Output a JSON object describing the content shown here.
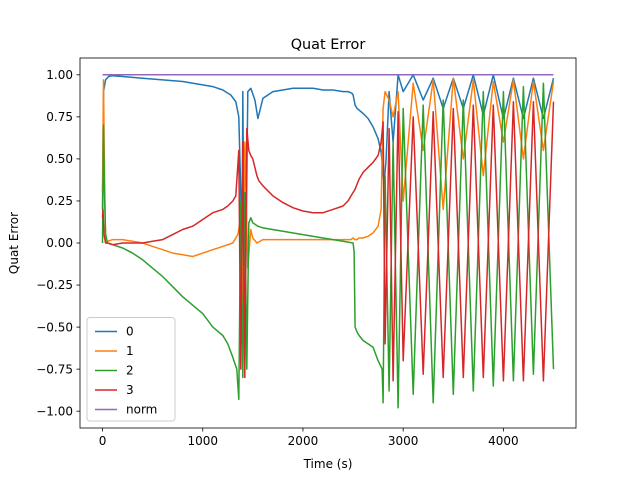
{
  "chart_data": {
    "type": "line",
    "title": "Quat Error",
    "xlabel": "Time (s)",
    "ylabel": "Quat Error",
    "xlim": [
      -225,
      4725
    ],
    "ylim": [
      -1.1,
      1.1
    ],
    "xticks": [
      0,
      1000,
      2000,
      3000,
      4000
    ],
    "xtick_labels": [
      "0",
      "1000",
      "2000",
      "3000",
      "4000"
    ],
    "yticks": [
      -1.0,
      -0.75,
      -0.5,
      -0.25,
      0.0,
      0.25,
      0.5,
      0.75,
      1.0
    ],
    "ytick_labels": [
      "−1.00",
      "−0.75",
      "−0.50",
      "−0.25",
      "0.00",
      "0.25",
      "0.50",
      "0.75",
      "1.00"
    ],
    "grid": false,
    "legend_position": "lower-left",
    "series": [
      {
        "name": "0",
        "color": "#1f77b4",
        "x": [
          0,
          10,
          30,
          60,
          100,
          200,
          400,
          600,
          800,
          1000,
          1100,
          1200,
          1280,
          1330,
          1360,
          1380,
          1390,
          1400,
          1420,
          1450,
          1480,
          1520,
          1550,
          1600,
          1700,
          1800,
          1900,
          2000,
          2100,
          2200,
          2300,
          2400,
          2450,
          2490,
          2500,
          2520,
          2540,
          2560,
          2600,
          2650,
          2700,
          2750,
          2780,
          2800,
          2810,
          2830,
          2860,
          2900,
          2950,
          3000,
          3100,
          3200,
          3300,
          3400,
          3500,
          3600,
          3700,
          3800,
          3900,
          4000,
          4100,
          4200,
          4300,
          4400,
          4500
        ],
        "y": [
          0.2,
          0.9,
          0.97,
          0.99,
          0.995,
          0.99,
          0.98,
          0.97,
          0.96,
          0.94,
          0.93,
          0.91,
          0.88,
          0.84,
          0.75,
          0.3,
          -0.6,
          0.9,
          -0.7,
          0.9,
          0.92,
          0.85,
          0.74,
          0.86,
          0.9,
          0.91,
          0.92,
          0.92,
          0.92,
          0.91,
          0.91,
          0.9,
          0.9,
          0.89,
          0.88,
          0.82,
          0.8,
          0.79,
          0.77,
          0.74,
          0.69,
          0.62,
          0.54,
          0.42,
          0.35,
          0.5,
          0.9,
          0.6,
          1.0,
          0.9,
          1.0,
          0.85,
          0.98,
          0.8,
          0.98,
          0.8,
          1.0,
          0.76,
          1.0,
          0.74,
          0.98,
          0.74,
          0.98,
          0.74,
          0.98
        ]
      },
      {
        "name": "1",
        "color": "#ff7f0e",
        "x": [
          0,
          10,
          20,
          30,
          50,
          100,
          200,
          300,
          400,
          500,
          600,
          700,
          800,
          900,
          1000,
          1100,
          1200,
          1300,
          1350,
          1380,
          1400,
          1420,
          1450,
          1480,
          1500,
          1540,
          1600,
          1800,
          2000,
          2200,
          2400,
          2450,
          2480,
          2500,
          2520,
          2540,
          2560,
          2600,
          2650,
          2700,
          2750,
          2780,
          2800,
          2820,
          2860,
          2900,
          2950,
          3000,
          3100,
          3200,
          3300,
          3400,
          3500,
          3600,
          3700,
          3800,
          3900,
          4000,
          4100,
          4200,
          4300,
          4400,
          4500
        ],
        "y": [
          0.3,
          0.97,
          0.4,
          0.0,
          0.01,
          0.02,
          0.02,
          0.01,
          0.0,
          -0.02,
          -0.04,
          -0.06,
          -0.07,
          -0.08,
          -0.06,
          -0.04,
          -0.02,
          0.0,
          0.05,
          0.15,
          -0.4,
          0.6,
          -0.15,
          0.08,
          0.03,
          0.0,
          0.02,
          0.02,
          0.02,
          0.02,
          0.02,
          0.02,
          0.02,
          0.03,
          0.02,
          0.02,
          0.03,
          0.03,
          0.04,
          0.06,
          0.1,
          0.2,
          0.8,
          0.9,
          0.85,
          0.75,
          0.9,
          0.25,
          0.95,
          0.55,
          0.97,
          0.2,
          0.98,
          0.5,
          0.97,
          0.4,
          0.96,
          0.6,
          0.97,
          0.5,
          0.96,
          0.55,
          0.96
        ]
      },
      {
        "name": "2",
        "color": "#2ca02c",
        "x": [
          0,
          10,
          20,
          30,
          50,
          100,
          200,
          300,
          400,
          500,
          600,
          700,
          800,
          900,
          1000,
          1100,
          1200,
          1250,
          1300,
          1340,
          1360,
          1380,
          1400,
          1420,
          1440,
          1460,
          1480,
          1500,
          1550,
          1600,
          1800,
          2000,
          2200,
          2400,
          2500,
          2510,
          2520,
          2540,
          2560,
          2600,
          2650,
          2700,
          2750,
          2790,
          2800,
          2820,
          2860,
          2900,
          2950,
          3000,
          3100,
          3200,
          3300,
          3400,
          3500,
          3600,
          3700,
          3800,
          3900,
          4000,
          4100,
          4200,
          4300,
          4400,
          4500
        ],
        "y": [
          0.0,
          0.7,
          0.3,
          0.05,
          0.0,
          -0.01,
          -0.03,
          -0.06,
          -0.1,
          -0.15,
          -0.2,
          -0.26,
          -0.32,
          -0.37,
          -0.42,
          -0.5,
          -0.55,
          -0.6,
          -0.68,
          -0.75,
          -0.93,
          0.25,
          -0.8,
          0.3,
          -0.75,
          0.12,
          0.15,
          0.12,
          0.1,
          0.09,
          0.07,
          0.05,
          0.03,
          0.01,
          0.0,
          -0.05,
          -0.5,
          -0.53,
          -0.55,
          -0.58,
          -0.6,
          -0.62,
          -0.7,
          -0.75,
          -0.95,
          0.4,
          -0.88,
          0.6,
          -0.98,
          0.8,
          -0.9,
          0.82,
          -0.95,
          0.85,
          -0.9,
          0.85,
          -0.88,
          0.9,
          -0.85,
          0.9,
          -0.82,
          0.93,
          -0.78,
          0.95,
          -0.75
        ]
      },
      {
        "name": "3",
        "color": "#d62728",
        "x": [
          0,
          5,
          15,
          30,
          50,
          100,
          200,
          300,
          400,
          500,
          600,
          700,
          800,
          900,
          1000,
          1100,
          1200,
          1250,
          1300,
          1330,
          1360,
          1380,
          1400,
          1420,
          1440,
          1460,
          1480,
          1500,
          1540,
          1560,
          1600,
          1700,
          1800,
          1900,
          2000,
          2100,
          2200,
          2300,
          2400,
          2450,
          2480,
          2500,
          2520,
          2540,
          2560,
          2600,
          2650,
          2700,
          2750,
          2780,
          2800,
          2820,
          2860,
          2900,
          2950,
          3000,
          3100,
          3200,
          3300,
          3400,
          3500,
          3600,
          3700,
          3800,
          3900,
          4000,
          4100,
          4200,
          4300,
          4400,
          4500
        ],
        "y": [
          0.15,
          0.2,
          0.05,
          0.0,
          0.0,
          -0.01,
          0.0,
          0.0,
          0.0,
          0.01,
          0.02,
          0.05,
          0.08,
          0.1,
          0.14,
          0.18,
          0.2,
          0.22,
          0.25,
          0.28,
          0.55,
          -0.75,
          0.6,
          -0.8,
          0.68,
          0.55,
          0.52,
          0.5,
          0.4,
          0.37,
          0.34,
          0.28,
          0.24,
          0.21,
          0.19,
          0.18,
          0.18,
          0.2,
          0.22,
          0.25,
          0.28,
          0.3,
          0.32,
          0.35,
          0.38,
          0.42,
          0.45,
          0.48,
          0.52,
          0.6,
          0.72,
          -0.6,
          0.68,
          -0.82,
          0.78,
          -0.7,
          0.75,
          -0.78,
          0.78,
          -0.8,
          0.8,
          -0.8,
          0.82,
          -0.8,
          0.82,
          -0.82,
          0.84,
          -0.82,
          0.84,
          -0.82,
          0.84
        ]
      },
      {
        "name": "norm",
        "color": "#9467bd",
        "x": [
          0,
          4500
        ],
        "y": [
          1.0,
          1.0
        ]
      }
    ]
  }
}
